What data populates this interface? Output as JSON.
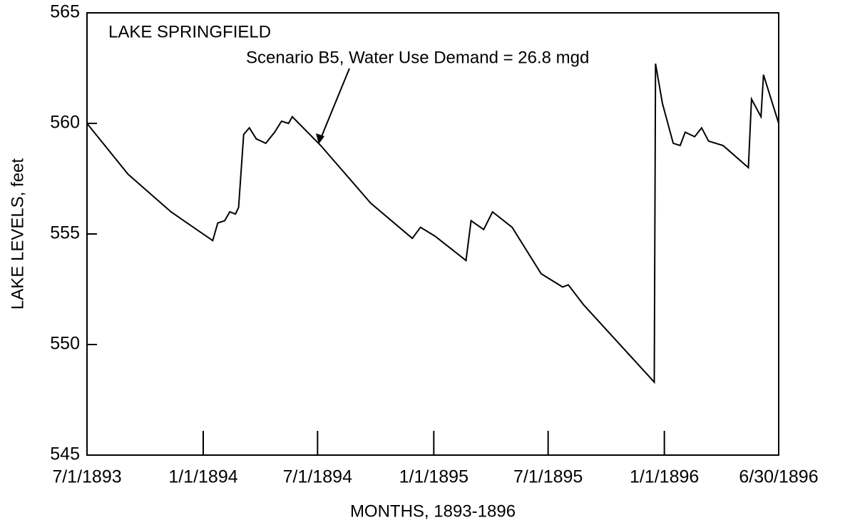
{
  "chart_data": {
    "type": "line",
    "panel_label": "LAKE SPRINGFIELD",
    "annotation": "Scenario B5, Water Use Demand = 26.8 mgd",
    "xlabel": "MONTHS, 1893-1896",
    "ylabel": "LAKE LEVELS, feet",
    "color": "#000000",
    "x": [
      "1893-07-01",
      "1893-09-04",
      "1893-11-11",
      "1894-01-16",
      "1894-01-24",
      "1894-02-04",
      "1894-02-12",
      "1894-02-21",
      "1894-02-26",
      "1894-03-06",
      "1894-03-15",
      "1894-03-26",
      "1894-04-10",
      "1894-04-24",
      "1894-05-05",
      "1894-05-16",
      "1894-05-22",
      "1894-07-06",
      "1894-09-23",
      "1894-11-28",
      "1894-12-11",
      "1895-01-03",
      "1895-02-21",
      "1895-03-01",
      "1895-03-21",
      "1895-04-04",
      "1895-05-05",
      "1895-06-20",
      "1895-07-24",
      "1895-08-02",
      "1895-08-26",
      "1895-12-16",
      "1895-12-18",
      "1895-12-29",
      "1896-01-15",
      "1896-01-26",
      "1896-02-03",
      "1896-02-18",
      "1896-02-29",
      "1896-03-11",
      "1896-04-03",
      "1896-05-13",
      "1896-05-18",
      "1896-06-02",
      "1896-06-06",
      "1896-06-30"
    ],
    "values": [
      560.0,
      557.7,
      556.0,
      554.7,
      555.5,
      555.6,
      556.0,
      555.9,
      556.2,
      559.5,
      559.8,
      559.3,
      559.1,
      559.6,
      560.1,
      560.0,
      560.3,
      559.0,
      556.4,
      554.8,
      555.3,
      554.9,
      553.8,
      555.6,
      555.2,
      556.0,
      555.3,
      553.2,
      552.6,
      552.7,
      551.8,
      548.3,
      562.7,
      560.9,
      559.1,
      559.0,
      559.6,
      559.4,
      559.8,
      559.2,
      559.0,
      558.0,
      561.1,
      560.3,
      562.2,
      560.0
    ],
    "xlim": [
      "1893-07-01",
      "1896-06-30"
    ],
    "xticks": [
      {
        "value": "1893-07-01",
        "label": "7/1/1893"
      },
      {
        "value": "1894-01-01",
        "label": "1/1/1894"
      },
      {
        "value": "1894-07-01",
        "label": "7/1/1894"
      },
      {
        "value": "1895-01-01",
        "label": "1/1/1895"
      },
      {
        "value": "1895-07-01",
        "label": "7/1/1895"
      },
      {
        "value": "1896-01-01",
        "label": "1/1/1896"
      },
      {
        "value": "1896-06-30",
        "label": "6/30/1896"
      }
    ],
    "ylim": [
      545,
      565
    ],
    "yticks": [
      545,
      550,
      555,
      560,
      565
    ]
  }
}
